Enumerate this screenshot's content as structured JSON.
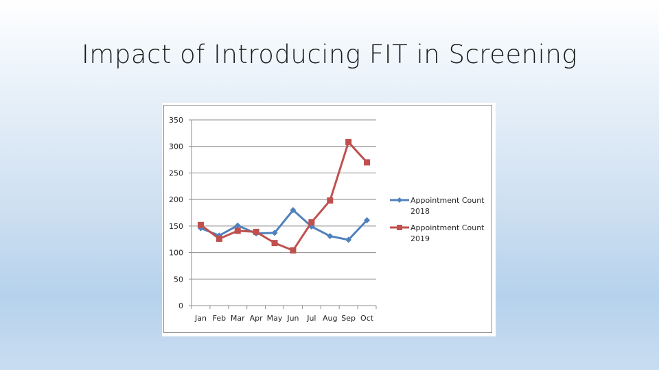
{
  "slide": {
    "title": "Impact of Introducing FIT in Screening"
  },
  "chart_data": {
    "type": "line",
    "title": "",
    "xlabel": "",
    "ylabel": "",
    "categories": [
      "Jan",
      "Feb",
      "Mar",
      "Apr",
      "May",
      "Jun",
      "Jul",
      "Aug",
      "Sep",
      "Oct"
    ],
    "ylim": [
      0,
      350
    ],
    "yticks": [
      0,
      50,
      100,
      150,
      200,
      250,
      300,
      350
    ],
    "grid": true,
    "legend_position": "right",
    "series": [
      {
        "name": "Appointment Count 2018",
        "legend_lines": [
          "Appointment Count",
          "2018"
        ],
        "color": "#4f81bd",
        "marker": "diamond",
        "values": [
          146,
          132,
          151,
          136,
          137,
          180,
          149,
          131,
          124,
          161
        ]
      },
      {
        "name": "Appointment Count 2019",
        "legend_lines": [
          "Appointment Count",
          "2019"
        ],
        "color": "#c0504d",
        "marker": "square",
        "values": [
          152,
          126,
          141,
          139,
          118,
          104,
          157,
          198,
          308,
          270
        ]
      }
    ]
  }
}
